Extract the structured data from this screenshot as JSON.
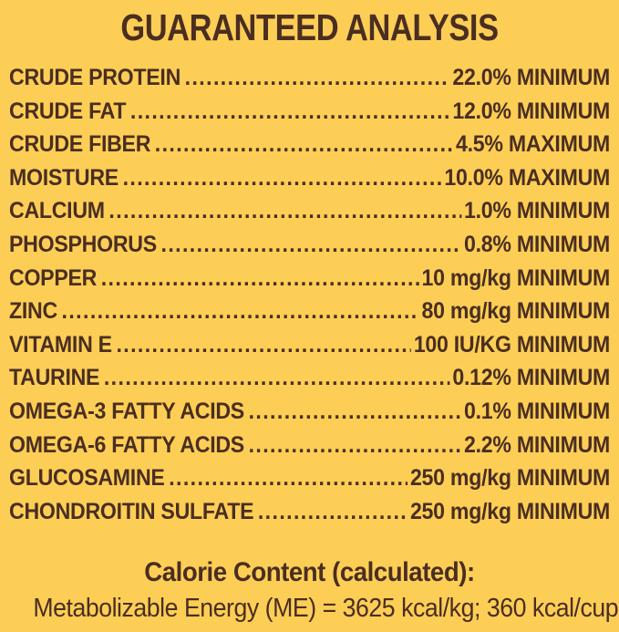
{
  "colors": {
    "background": "#fdce55",
    "text": "#4a2e22"
  },
  "title": "GUARANTEED ANALYSIS",
  "rows": [
    {
      "label": "CRUDE PROTEIN",
      "value": "22.0% MINIMUM"
    },
    {
      "label": "CRUDE FAT",
      "value": "12.0% MINIMUM"
    },
    {
      "label": "CRUDE FIBER",
      "value": "4.5% MAXIMUM"
    },
    {
      "label": "MOISTURE",
      "value": "10.0% MAXIMUM"
    },
    {
      "label": "CALCIUM",
      "value": "1.0% MINIMUM"
    },
    {
      "label": "PHOSPHORUS",
      "value": "0.8% MINIMUM"
    },
    {
      "label": "COPPER",
      "value": "10 mg/kg MINIMUM"
    },
    {
      "label": "ZINC",
      "value": "80 mg/kg MINIMUM"
    },
    {
      "label": "VITAMIN E",
      "value": "100 IU/KG MINIMUM"
    },
    {
      "label": "TAURINE",
      "value": "0.12% MINIMUM"
    },
    {
      "label": "OMEGA-3 FATTY ACIDS",
      "value": "0.1% MINIMUM"
    },
    {
      "label": "OMEGA-6 FATTY ACIDS",
      "value": "2.2% MINIMUM"
    },
    {
      "label": "GLUCOSAMINE",
      "value": "250 mg/kg MINIMUM"
    },
    {
      "label": "CHONDROITIN SULFATE",
      "value": "250 mg/kg MINIMUM"
    }
  ],
  "calorie": {
    "heading": "Calorie Content (calculated):",
    "line": "Metabolizable Energy (ME) = 3625 kcal/kg; 360 kcal/cup"
  }
}
